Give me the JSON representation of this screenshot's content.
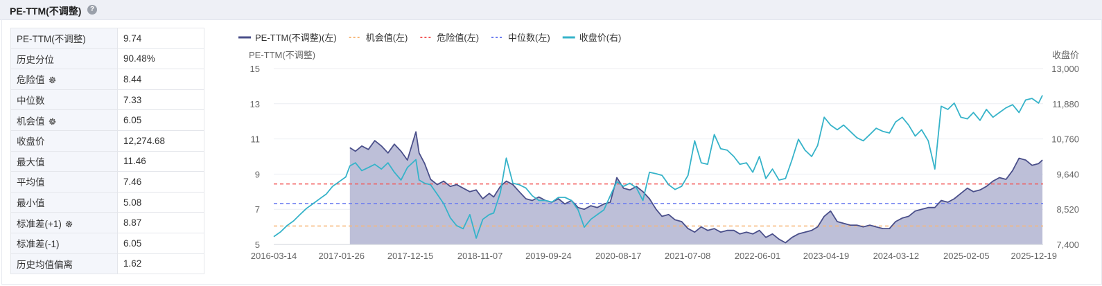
{
  "header": {
    "title": "PE-TTM(不调整)",
    "help_icon": "?"
  },
  "stats": [
    {
      "label": "PE-TTM(不调整)",
      "value": "9.74",
      "gear": false
    },
    {
      "label": "历史分位",
      "value": "90.48%",
      "gear": false
    },
    {
      "label": "危险值",
      "value": "8.44",
      "gear": true
    },
    {
      "label": "中位数",
      "value": "7.33",
      "gear": false
    },
    {
      "label": "机会值",
      "value": "6.05",
      "gear": true
    },
    {
      "label": "收盘价",
      "value": "12,274.68",
      "gear": false
    },
    {
      "label": "最大值",
      "value": "11.46",
      "gear": false
    },
    {
      "label": "平均值",
      "value": "7.46",
      "gear": false
    },
    {
      "label": "最小值",
      "value": "5.08",
      "gear": false
    },
    {
      "label": "标准差(+1)",
      "value": "8.87",
      "gear": true
    },
    {
      "label": "标准差(-1)",
      "value": "6.05",
      "gear": false
    },
    {
      "label": "历史均值偏离",
      "value": "1.62",
      "gear": false
    }
  ],
  "chart_data": {
    "type": "line",
    "left_axis_title": "PE-TTM(不调整)",
    "right_axis_title": "收盘价",
    "ylim_left": [
      5,
      15
    ],
    "yticks_left": [
      "5",
      "7",
      "9",
      "11",
      "13",
      "15"
    ],
    "ylim_right": [
      7400,
      13000
    ],
    "yticks_right": [
      "7,400",
      "8,520",
      "9,640",
      "10,760",
      "11,880",
      "13,000"
    ],
    "xlim": [
      "2016-03-14",
      "2026-01-31"
    ],
    "xticks": [
      "2016-03-14",
      "2017-01-26",
      "2017-12-15",
      "2018-11-07",
      "2019-09-24",
      "2020-08-17",
      "2021-07-08",
      "2022-06-01",
      "2023-04-19",
      "2024-03-12",
      "2025-02-05",
      "2025-12-19"
    ],
    "legend": [
      {
        "name": "PE-TTM(不调整)(左)",
        "color": "#4a4f8a",
        "style": "solid"
      },
      {
        "name": "机会值(左)",
        "color": "#f7b87a",
        "style": "dashed"
      },
      {
        "name": "危险值(左)",
        "color": "#f25a5a",
        "style": "dashed"
      },
      {
        "name": "中位数(左)",
        "color": "#6b7cf0",
        "style": "dashed"
      },
      {
        "name": "收盘价(右)",
        "color": "#36b3c9",
        "style": "solid"
      }
    ],
    "reference_lines": {
      "机会值": 6.05,
      "危险值": 8.44,
      "中位数": 7.33
    },
    "series": [
      {
        "name": "PE-TTM(不调整)(左)",
        "axis": "left",
        "area": true,
        "x": [
          "2017-03-06",
          "2017-04-01",
          "2017-05-01",
          "2017-06-01",
          "2017-07-01",
          "2017-08-01",
          "2017-09-01",
          "2017-10-01",
          "2017-11-01",
          "2017-12-01",
          "2018-01-10",
          "2018-01-25",
          "2018-02-20",
          "2018-03-20",
          "2018-04-20",
          "2018-05-20",
          "2018-06-20",
          "2018-07-20",
          "2018-08-20",
          "2018-09-20",
          "2018-10-20",
          "2018-11-20",
          "2018-12-20",
          "2019-01-10",
          "2019-02-10",
          "2019-03-10",
          "2019-04-10",
          "2019-05-10",
          "2019-06-10",
          "2019-07-10",
          "2019-08-10",
          "2019-09-10",
          "2019-10-10",
          "2019-11-10",
          "2019-12-10",
          "2020-01-10",
          "2020-02-10",
          "2020-03-10",
          "2020-04-10",
          "2020-05-10",
          "2020-06-10",
          "2020-07-10",
          "2020-08-10",
          "2020-09-10",
          "2020-10-10",
          "2020-11-10",
          "2020-12-10",
          "2021-01-10",
          "2021-02-10",
          "2021-03-10",
          "2021-04-10",
          "2021-05-10",
          "2021-06-10",
          "2021-07-10",
          "2021-08-10",
          "2021-09-10",
          "2021-10-10",
          "2021-11-10",
          "2021-12-10",
          "2022-01-10",
          "2022-02-10",
          "2022-03-10",
          "2022-04-10",
          "2022-05-10",
          "2022-06-10",
          "2022-07-10",
          "2022-08-10",
          "2022-09-10",
          "2022-10-10",
          "2022-11-10",
          "2022-12-10",
          "2023-01-10",
          "2023-02-10",
          "2023-03-10",
          "2023-04-10",
          "2023-05-10",
          "2023-06-10",
          "2023-07-10",
          "2023-08-10",
          "2023-09-10",
          "2023-10-10",
          "2023-11-10",
          "2023-12-10",
          "2024-01-10",
          "2024-02-10",
          "2024-03-10",
          "2024-04-10",
          "2024-05-10",
          "2024-06-10",
          "2024-07-10",
          "2024-08-10",
          "2024-09-10",
          "2024-10-10",
          "2024-11-10",
          "2024-12-10",
          "2025-01-10",
          "2025-02-10",
          "2025-03-10",
          "2025-04-10",
          "2025-05-10",
          "2025-06-10",
          "2025-07-10",
          "2025-08-10",
          "2025-09-10",
          "2025-10-10",
          "2025-11-10",
          "2025-12-10",
          "2026-01-10",
          "2026-01-28"
        ],
        "y": [
          10.5,
          10.3,
          10.6,
          10.4,
          10.9,
          10.6,
          10.2,
          10.7,
          10.3,
          9.8,
          11.4,
          10.2,
          9.6,
          8.7,
          8.4,
          8.6,
          8.3,
          8.4,
          8.2,
          8.0,
          8.1,
          7.6,
          7.9,
          7.7,
          8.3,
          8.6,
          8.4,
          8.0,
          7.6,
          7.5,
          7.7,
          7.5,
          7.4,
          7.6,
          7.3,
          7.5,
          7.1,
          7.0,
          7.2,
          7.1,
          7.3,
          7.4,
          8.8,
          8.2,
          8.1,
          8.3,
          8.0,
          7.6,
          7.0,
          6.6,
          6.7,
          6.4,
          6.3,
          5.9,
          5.7,
          6.0,
          5.8,
          5.9,
          5.7,
          5.8,
          5.8,
          5.6,
          5.7,
          5.6,
          5.8,
          5.4,
          5.6,
          5.3,
          5.1,
          5.4,
          5.6,
          5.7,
          5.8,
          6.0,
          6.6,
          6.9,
          6.3,
          6.2,
          6.1,
          6.1,
          6.0,
          6.1,
          6.0,
          5.9,
          5.9,
          6.3,
          6.5,
          6.6,
          6.9,
          7.0,
          7.1,
          7.1,
          7.5,
          7.4,
          7.6,
          7.9,
          8.2,
          8.0,
          8.1,
          8.3,
          8.6,
          8.8,
          8.7,
          9.2,
          9.9,
          9.8,
          9.5,
          9.6,
          9.8
        ]
      },
      {
        "name": "收盘价(右)",
        "axis": "right",
        "area": false,
        "x": [
          "2016-03-14",
          "2016-04-15",
          "2016-05-15",
          "2016-06-15",
          "2016-07-15",
          "2016-08-15",
          "2016-09-15",
          "2016-10-15",
          "2016-11-15",
          "2016-12-15",
          "2017-01-15",
          "2017-02-15",
          "2017-03-06",
          "2017-04-01",
          "2017-05-01",
          "2017-06-01",
          "2017-07-01",
          "2017-08-01",
          "2017-09-01",
          "2017-10-01",
          "2017-11-01",
          "2017-12-01",
          "2018-01-10",
          "2018-01-25",
          "2018-02-20",
          "2018-03-20",
          "2018-04-20",
          "2018-05-20",
          "2018-06-20",
          "2018-07-20",
          "2018-08-20",
          "2018-09-20",
          "2018-10-20",
          "2018-11-20",
          "2018-12-20",
          "2019-01-10",
          "2019-02-10",
          "2019-03-10",
          "2019-04-10",
          "2019-05-10",
          "2019-06-10",
          "2019-07-10",
          "2019-08-10",
          "2019-09-10",
          "2019-10-10",
          "2019-11-10",
          "2019-12-10",
          "2020-01-10",
          "2020-02-10",
          "2020-03-10",
          "2020-04-10",
          "2020-05-10",
          "2020-06-10",
          "2020-07-10",
          "2020-08-10",
          "2020-09-10",
          "2020-10-10",
          "2020-11-10",
          "2020-12-10",
          "2021-01-10",
          "2021-02-10",
          "2021-03-10",
          "2021-04-10",
          "2021-05-10",
          "2021-06-10",
          "2021-07-10",
          "2021-08-10",
          "2021-09-10",
          "2021-10-10",
          "2021-11-10",
          "2021-12-10",
          "2022-01-10",
          "2022-02-10",
          "2022-03-10",
          "2022-04-10",
          "2022-05-10",
          "2022-06-10",
          "2022-07-10",
          "2022-08-10",
          "2022-09-10",
          "2022-10-10",
          "2022-11-10",
          "2022-12-10",
          "2023-01-10",
          "2023-02-10",
          "2023-03-10",
          "2023-04-10",
          "2023-05-10",
          "2023-06-10",
          "2023-07-10",
          "2023-08-10",
          "2023-09-10",
          "2023-10-10",
          "2023-11-10",
          "2023-12-10",
          "2024-01-10",
          "2024-02-10",
          "2024-03-10",
          "2024-04-10",
          "2024-05-10",
          "2024-06-10",
          "2024-07-10",
          "2024-08-10",
          "2024-09-10",
          "2024-10-10",
          "2024-11-10",
          "2024-12-10",
          "2025-01-10",
          "2025-02-10",
          "2025-03-10",
          "2025-04-10",
          "2025-05-10",
          "2025-06-10",
          "2025-07-10",
          "2025-08-10",
          "2025-09-10",
          "2025-10-10",
          "2025-11-10",
          "2025-12-10",
          "2026-01-10",
          "2026-01-28"
        ],
        "y": [
          7650,
          7800,
          8000,
          8150,
          8350,
          8550,
          8700,
          8850,
          9000,
          9250,
          9400,
          9550,
          9900,
          10000,
          9750,
          9850,
          9950,
          9800,
          10000,
          9700,
          9450,
          9850,
          10100,
          9450,
          9350,
          9300,
          9000,
          8700,
          8250,
          8000,
          7900,
          8350,
          7600,
          8200,
          8350,
          8400,
          9050,
          10150,
          9350,
          9300,
          9200,
          8950,
          8800,
          8800,
          8750,
          8900,
          8900,
          8800,
          8500,
          7950,
          8200,
          8350,
          8500,
          8950,
          9400,
          9250,
          9350,
          9200,
          8800,
          9700,
          9650,
          9600,
          9300,
          9150,
          9250,
          9600,
          10700,
          10000,
          9950,
          10900,
          10450,
          10400,
          10200,
          9950,
          10000,
          9700,
          10200,
          9500,
          9800,
          9450,
          9500,
          10100,
          10750,
          10400,
          10200,
          10550,
          11450,
          11200,
          11050,
          11200,
          11000,
          10800,
          10700,
          10900,
          11100,
          11000,
          10950,
          11300,
          11450,
          11200,
          10850,
          11050,
          10700,
          9800,
          11800,
          11700,
          11900,
          11450,
          11400,
          11600,
          11350,
          11700,
          11450,
          11600,
          11750,
          11850,
          11600,
          12000,
          12050,
          11900,
          12150
        ]
      }
    ]
  }
}
